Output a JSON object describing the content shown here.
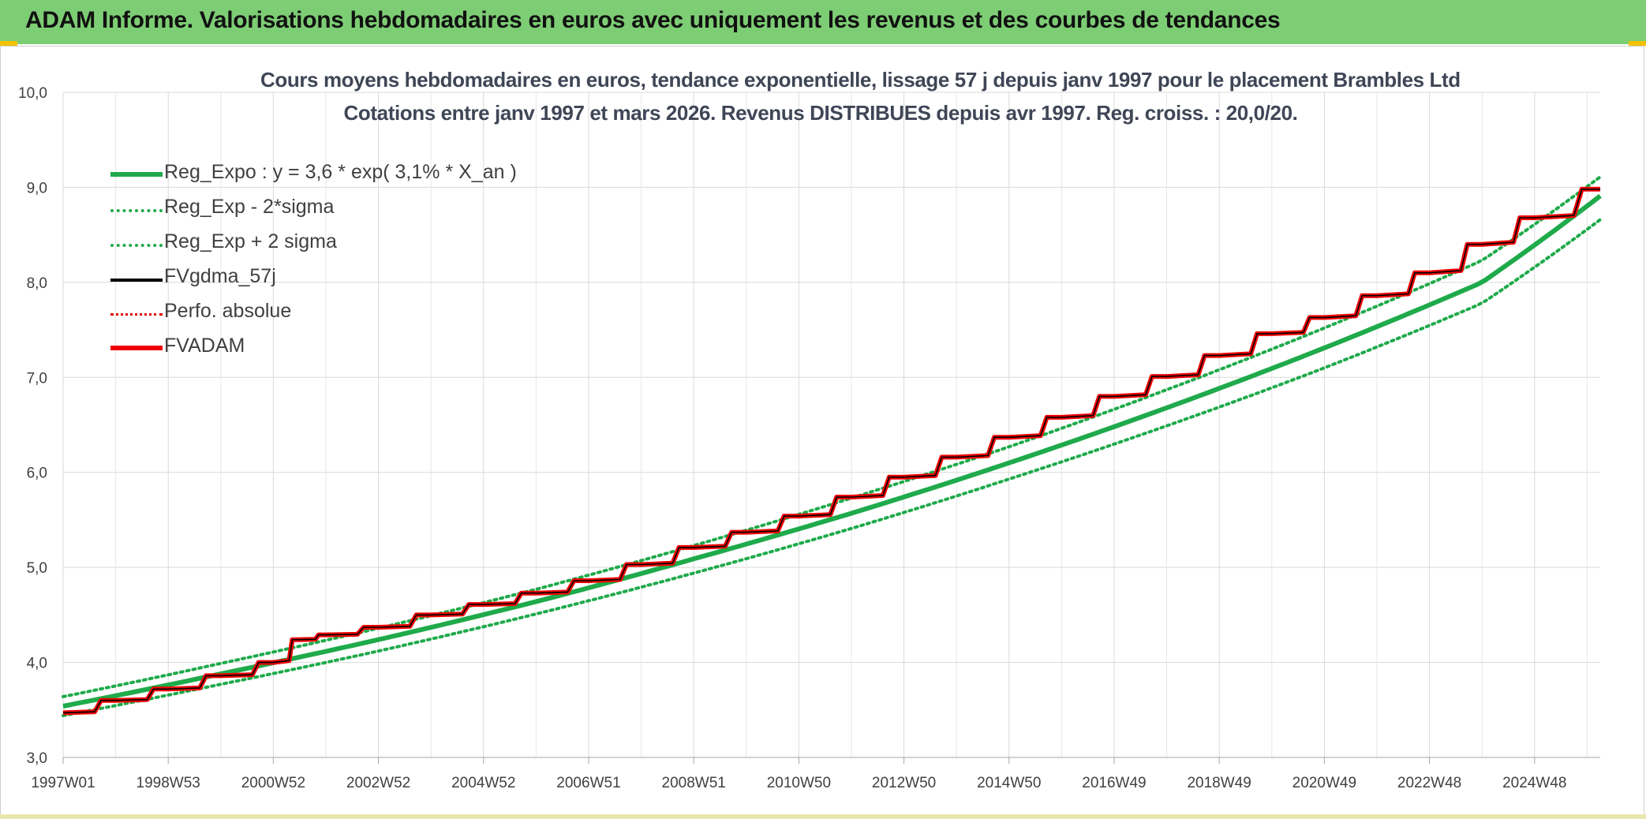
{
  "banner_title": "ADAM Informe. Valorisations hebdomadaires en euros avec uniquement les revenus et des courbes de tendances",
  "chart_data": {
    "type": "line",
    "title": "Cours moyens hebdomadaires en euros, tendance exponentielle, lissage 57 j depuis janv 1997 pour le placement Brambles Ltd",
    "subtitle": "Cotations entre janv 1997 et mars 2026. Revenus DISTRIBUES depuis avr 1997. Reg. croiss. : 20,0/20.",
    "xlabel": "",
    "ylabel": "",
    "ylim": [
      3.0,
      10.0
    ],
    "y_ticks": [
      "3,0",
      "4,0",
      "5,0",
      "6,0",
      "7,0",
      "8,0",
      "9,0",
      "10,0"
    ],
    "x_ticks": [
      "1997W01",
      "1998W53",
      "2000W52",
      "2002W52",
      "2004W52",
      "2006W51",
      "2008W51",
      "2010W50",
      "2012W50",
      "2014W50",
      "2016W49",
      "2018W49",
      "2020W49",
      "2022W48",
      "2024W48"
    ],
    "x_start_year": 1997.0,
    "x_end_year": 2026.25,
    "grid": true,
    "legend_position": "top-left",
    "series": [
      {
        "name": "Reg_Expo : y = 3,6 * exp( 3,1% *  X_an )",
        "color": "#1faa4b",
        "style": "solid-thick",
        "x": [
          1997,
          2000,
          2003,
          2006,
          2009,
          2012,
          2015,
          2018,
          2021,
          2024,
          2026.25
        ],
        "values": [
          3.54,
          3.88,
          4.24,
          4.64,
          5.09,
          5.57,
          6.1,
          6.68,
          7.31,
          8.0,
          8.91
        ]
      },
      {
        "name": "Reg_Exp - 2*sigma",
        "color": "#1faa4b",
        "style": "dotted",
        "x": [
          1997,
          2000,
          2003,
          2006,
          2009,
          2012,
          2015,
          2018,
          2021,
          2024,
          2026.25
        ],
        "values": [
          3.44,
          3.77,
          4.12,
          4.51,
          4.94,
          5.41,
          5.93,
          6.49,
          7.1,
          7.78,
          8.66
        ]
      },
      {
        "name": "Reg_Exp + 2 sigma",
        "color": "#1faa4b",
        "style": "dotted",
        "x": [
          1997,
          2000,
          2003,
          2006,
          2009,
          2012,
          2015,
          2018,
          2021,
          2024,
          2026.25
        ],
        "values": [
          3.64,
          3.99,
          4.36,
          4.77,
          5.23,
          5.73,
          6.27,
          6.87,
          7.52,
          8.23,
          9.11
        ]
      },
      {
        "name": "FVgdma_57j",
        "color": "#000000",
        "style": "solid",
        "x": [
          1997,
          1998,
          1999,
          2000,
          2001,
          2001.5,
          2002,
          2003,
          2004,
          2005,
          2006,
          2007,
          2008,
          2009,
          2010,
          2011,
          2012,
          2013,
          2014,
          2015,
          2016,
          2017,
          2018,
          2019,
          2020,
          2021,
          2022,
          2023,
          2024,
          2025,
          2026.25
        ],
        "values": [
          3.47,
          3.6,
          3.72,
          3.86,
          4.0,
          4.24,
          4.29,
          4.37,
          4.5,
          4.61,
          4.73,
          4.86,
          5.03,
          5.21,
          5.37,
          5.54,
          5.74,
          5.95,
          6.16,
          6.37,
          6.58,
          6.8,
          7.01,
          7.23,
          7.46,
          7.63,
          7.86,
          8.1,
          8.4,
          8.68,
          8.98
        ]
      },
      {
        "name": "Perfo. absolue",
        "color": "#e00000",
        "style": "dotted",
        "x": [
          1997,
          2001.5,
          2006,
          2011,
          2016,
          2021,
          2026.25
        ],
        "values": [
          3.47,
          4.24,
          4.74,
          5.55,
          6.6,
          7.64,
          8.98
        ]
      },
      {
        "name": "FVADAM",
        "color": "#ee0000",
        "style": "step-thick",
        "x": [
          1997,
          1998,
          1999,
          2000,
          2001,
          2001.5,
          2002,
          2003,
          2004,
          2005,
          2006,
          2007,
          2008,
          2009,
          2010,
          2011,
          2012,
          2013,
          2014,
          2015,
          2016,
          2017,
          2018,
          2019,
          2020,
          2021,
          2022,
          2023,
          2024,
          2025,
          2026.25
        ],
        "values": [
          3.47,
          3.6,
          3.72,
          3.86,
          4.0,
          4.24,
          4.29,
          4.37,
          4.5,
          4.61,
          4.73,
          4.86,
          5.03,
          5.21,
          5.37,
          5.54,
          5.74,
          5.95,
          6.16,
          6.37,
          6.58,
          6.8,
          7.01,
          7.23,
          7.46,
          7.63,
          7.86,
          8.1,
          8.4,
          8.68,
          8.98
        ]
      }
    ]
  }
}
